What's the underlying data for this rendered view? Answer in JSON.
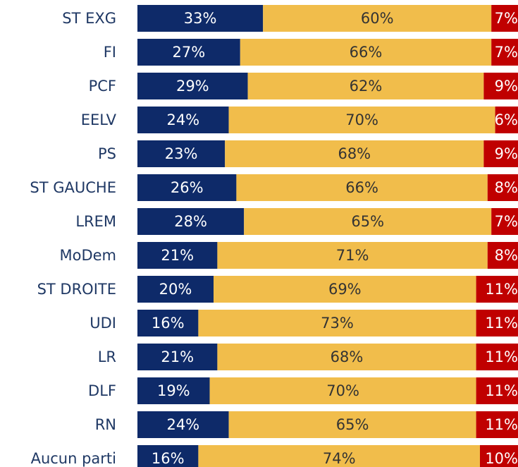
{
  "chart_data": {
    "type": "stacked-bar-horizontal",
    "categories": [
      "ST EXG",
      "FI",
      "PCF",
      "EELV",
      "PS",
      "ST GAUCHE",
      "LREM",
      "MoDem",
      "ST DROITE",
      "UDI",
      "LR",
      "DLF",
      "RN",
      "Aucun parti"
    ],
    "series": [
      {
        "color": "#0e2a69",
        "values": [
          33,
          27,
          29,
          24,
          23,
          26,
          28,
          21,
          20,
          16,
          21,
          19,
          24,
          16
        ],
        "value_labels": [
          "33%",
          "27%",
          "29%",
          "24%",
          "23%",
          "26%",
          "28%",
          "21%",
          "20%",
          "16%",
          "21%",
          "19%",
          "24%",
          "16%"
        ]
      },
      {
        "color": "#f1bd4b",
        "values": [
          60,
          66,
          62,
          70,
          68,
          66,
          65,
          71,
          69,
          73,
          68,
          70,
          65,
          74
        ],
        "value_labels": [
          "60%",
          "66%",
          "62%",
          "70%",
          "68%",
          "66%",
          "65%",
          "71%",
          "69%",
          "73%",
          "68%",
          "70%",
          "65%",
          "74%"
        ]
      },
      {
        "color": "#c00000",
        "values": [
          7,
          7,
          9,
          6,
          9,
          8,
          7,
          8,
          11,
          11,
          11,
          11,
          11,
          10
        ],
        "value_labels": [
          "7%",
          "7%",
          "9%",
          "6%",
          "9%",
          "8%",
          "7%",
          "8%",
          "11%",
          "11%",
          "11%",
          "11%",
          "11%",
          "10%"
        ]
      }
    ]
  }
}
